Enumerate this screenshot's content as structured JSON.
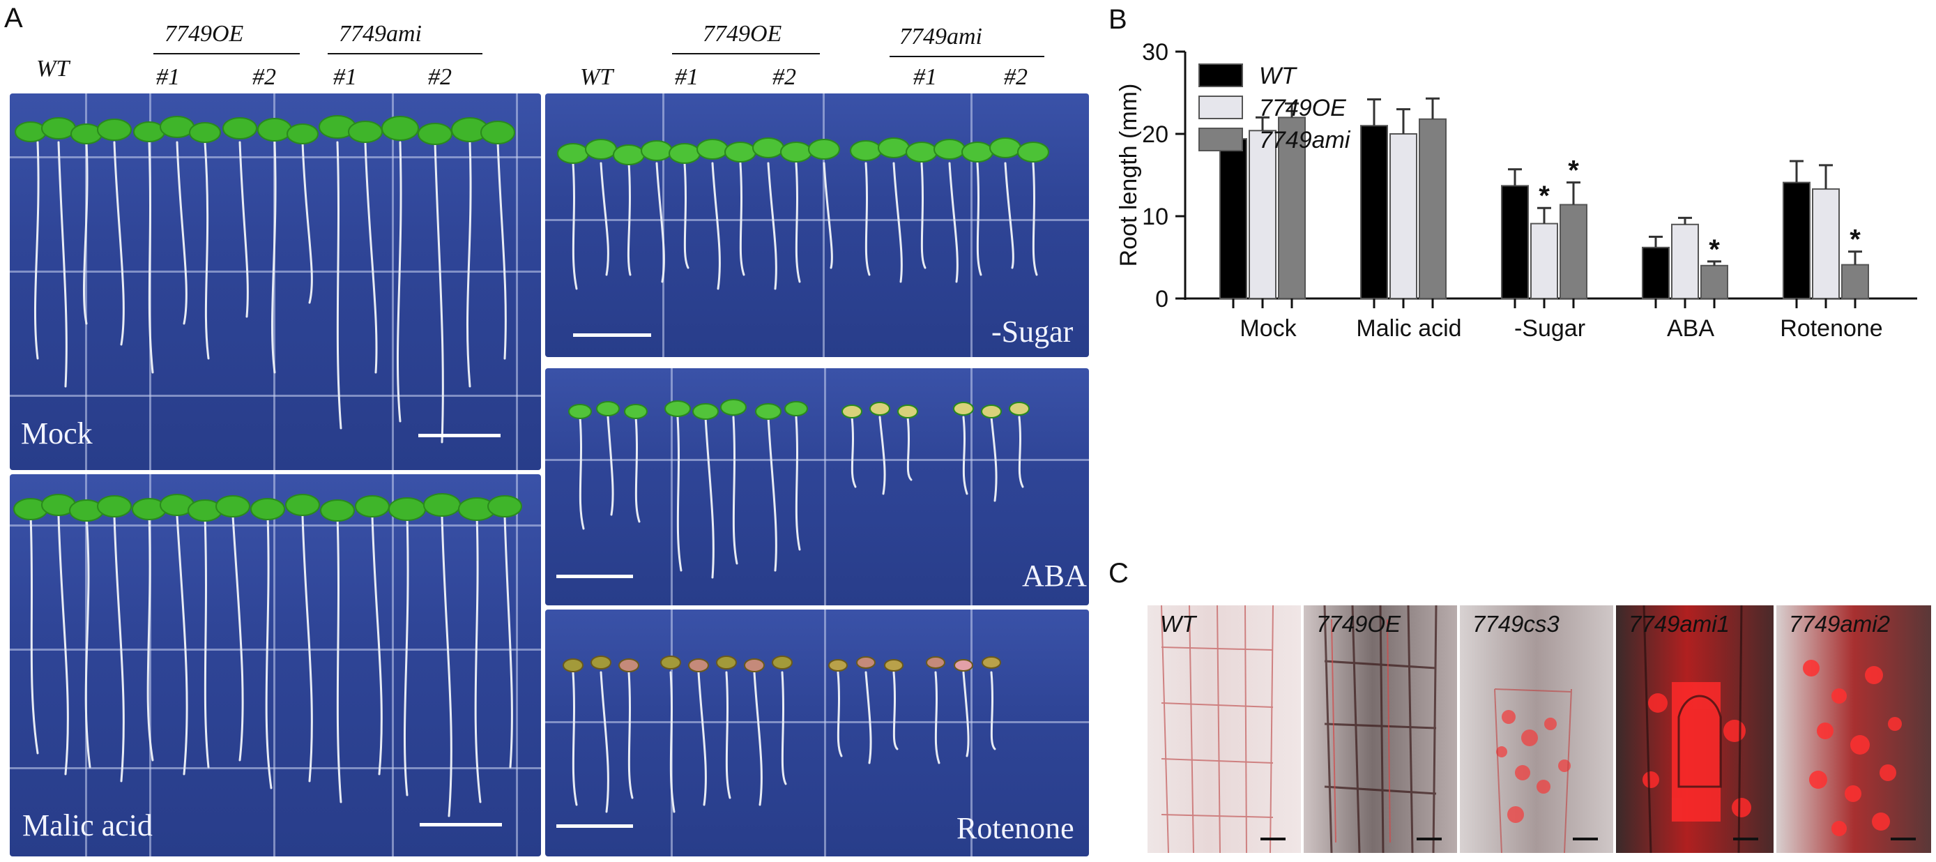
{
  "panels": {
    "a": "A",
    "b": "B",
    "c": "C"
  },
  "panel_a": {
    "top_left": {
      "genotype_wt": "WT",
      "group_oe": "7749OE",
      "group_ami": "7749ami",
      "line1": "#1",
      "line2": "#2"
    },
    "top_right": {
      "genotype_wt": "WT",
      "group_oe": "7749OE",
      "group_ami": "7749ami",
      "line1": "#1",
      "line2": "#2"
    },
    "conditions": {
      "mock": "Mock",
      "malic": "Malic acid",
      "sugar": "-Sugar",
      "aba": "ABA",
      "rotenone": "Rotenone"
    }
  },
  "chart_data": {
    "type": "bar",
    "ylabel": "Root length (mm)",
    "xlabel": "",
    "ylim": [
      0,
      30
    ],
    "yticks": [
      0,
      10,
      20,
      30
    ],
    "categories": [
      "Mock",
      "Malic acid",
      "-Sugar",
      "ABA",
      "Rotenone"
    ],
    "series": [
      {
        "name": "WT",
        "color": "#000000",
        "values": [
          19.4,
          21.0,
          13.7,
          6.2,
          14.1
        ],
        "errors": [
          0.7,
          3.2,
          2.0,
          1.3,
          2.6
        ],
        "stars": [
          false,
          false,
          false,
          false,
          false
        ]
      },
      {
        "name": "7749OE",
        "color": "#e6e6ec",
        "values": [
          20.4,
          20.0,
          9.1,
          9.0,
          13.3
        ],
        "errors": [
          1.6,
          3.0,
          1.9,
          0.8,
          2.9
        ],
        "stars": [
          false,
          false,
          true,
          false,
          false
        ]
      },
      {
        "name": "7749ami",
        "color": "#7f7f7f",
        "values": [
          22.0,
          21.8,
          11.4,
          4.0,
          4.1
        ],
        "errors": [
          1.7,
          2.5,
          2.7,
          0.5,
          1.6
        ],
        "stars": [
          false,
          false,
          true,
          true,
          true
        ]
      }
    ],
    "star_symbol": "*",
    "legend": "top-right"
  },
  "panel_c": {
    "images": [
      "WT",
      "7749OE",
      "7749cs3",
      "7749ami1",
      "7749ami2"
    ]
  }
}
